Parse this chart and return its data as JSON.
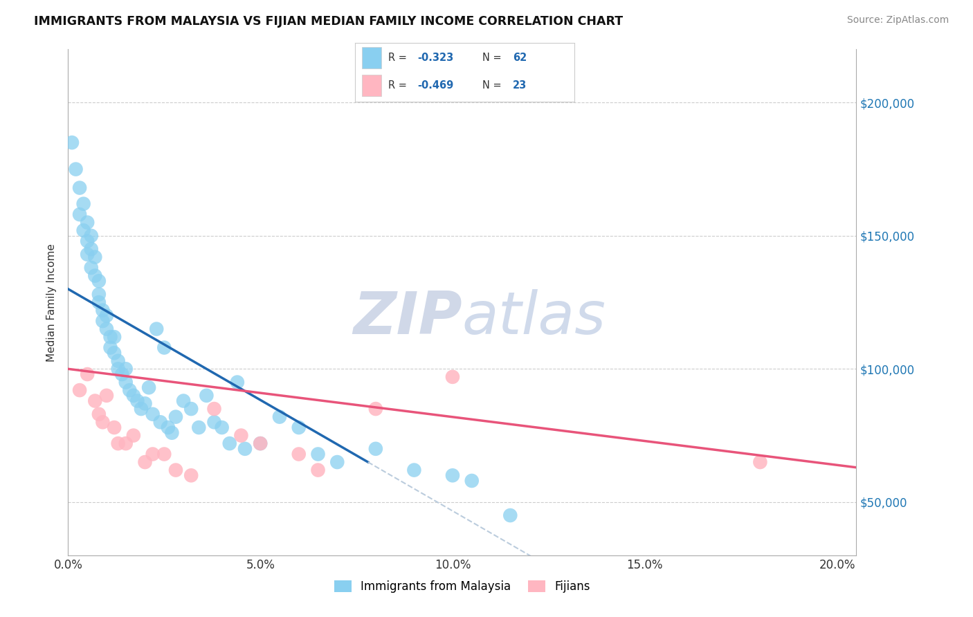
{
  "title": "IMMIGRANTS FROM MALAYSIA VS FIJIAN MEDIAN FAMILY INCOME CORRELATION CHART",
  "source": "Source: ZipAtlas.com",
  "ylabel": "Median Family Income",
  "x_ticks": [
    0.0,
    0.05,
    0.1,
    0.15,
    0.2
  ],
  "x_tick_labels": [
    "0.0%",
    "5.0%",
    "10.0%",
    "15.0%",
    "20.0%"
  ],
  "y_ticks": [
    50000,
    100000,
    150000,
    200000
  ],
  "y_tick_labels_right": [
    "$50,000",
    "$100,000",
    "$150,000",
    "$200,000"
  ],
  "xlim": [
    0.0,
    0.205
  ],
  "ylim": [
    30000,
    220000
  ],
  "blue_color": "#89CFF0",
  "blue_line_color": "#2068B0",
  "pink_color": "#FFB6C1",
  "pink_line_color": "#E8547A",
  "dash_color": "#BBCCDD",
  "legend_label_blue": "Immigrants from Malaysia",
  "legend_label_pink": "Fijians",
  "watermark": "ZIPatlas",
  "background_color": "#FFFFFF",
  "blue_scatter_x": [
    0.001,
    0.002,
    0.003,
    0.003,
    0.004,
    0.004,
    0.005,
    0.005,
    0.005,
    0.006,
    0.006,
    0.006,
    0.007,
    0.007,
    0.008,
    0.008,
    0.008,
    0.009,
    0.009,
    0.01,
    0.01,
    0.011,
    0.011,
    0.012,
    0.012,
    0.013,
    0.013,
    0.014,
    0.015,
    0.015,
    0.016,
    0.017,
    0.018,
    0.019,
    0.02,
    0.021,
    0.022,
    0.023,
    0.024,
    0.025,
    0.026,
    0.027,
    0.028,
    0.03,
    0.032,
    0.034,
    0.036,
    0.038,
    0.04,
    0.042,
    0.044,
    0.046,
    0.05,
    0.055,
    0.06,
    0.065,
    0.07,
    0.08,
    0.09,
    0.1,
    0.105,
    0.115
  ],
  "blue_scatter_y": [
    185000,
    175000,
    168000,
    158000,
    152000,
    162000,
    148000,
    143000,
    155000,
    145000,
    138000,
    150000,
    135000,
    142000,
    128000,
    125000,
    133000,
    122000,
    118000,
    115000,
    120000,
    112000,
    108000,
    106000,
    112000,
    103000,
    100000,
    98000,
    95000,
    100000,
    92000,
    90000,
    88000,
    85000,
    87000,
    93000,
    83000,
    115000,
    80000,
    108000,
    78000,
    76000,
    82000,
    88000,
    85000,
    78000,
    90000,
    80000,
    78000,
    72000,
    95000,
    70000,
    72000,
    82000,
    78000,
    68000,
    65000,
    70000,
    62000,
    60000,
    58000,
    45000
  ],
  "pink_scatter_x": [
    0.003,
    0.005,
    0.007,
    0.008,
    0.009,
    0.01,
    0.012,
    0.013,
    0.015,
    0.017,
    0.02,
    0.022,
    0.025,
    0.028,
    0.032,
    0.038,
    0.045,
    0.05,
    0.06,
    0.065,
    0.08,
    0.1,
    0.18
  ],
  "pink_scatter_y": [
    92000,
    98000,
    88000,
    83000,
    80000,
    90000,
    78000,
    72000,
    72000,
    75000,
    65000,
    68000,
    68000,
    62000,
    60000,
    85000,
    75000,
    72000,
    68000,
    62000,
    85000,
    97000,
    65000
  ],
  "blue_line_x0": 0.0,
  "blue_line_x1": 0.078,
  "blue_line_y0": 130000,
  "blue_line_y1": 65000,
  "dash_line_x0": 0.078,
  "dash_line_x1": 0.205,
  "pink_line_x0": 0.0,
  "pink_line_x1": 0.205,
  "pink_line_y0": 100000,
  "pink_line_y1": 63000
}
